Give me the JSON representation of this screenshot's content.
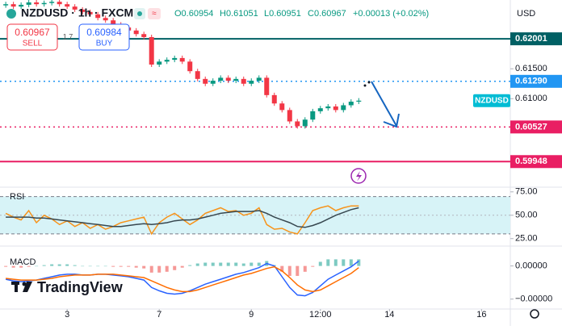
{
  "toolbar": {
    "symbol": "NZDUSD · 1h · FXCM",
    "open": "O0.60954",
    "high": "H0.61051",
    "low": "L0.60951",
    "close": "C0.60967",
    "change": "+0.00013 (+0.02%)",
    "sell_price": "0.60967",
    "sell": "SELL",
    "spread": "1.7",
    "buy_price": "0.60984",
    "buy": "BUY",
    "currency": "USD",
    "logo": "TradingView"
  },
  "chart_data": [
    {
      "type": "candlestick",
      "up_color": "#089981",
      "down_color": "#f23645",
      "x": [
        -32,
        -28,
        -24,
        -20,
        -16,
        -12,
        -8,
        -4,
        0,
        4,
        8,
        12,
        16,
        20,
        24,
        28,
        32,
        36,
        40,
        44,
        48,
        52,
        56,
        60,
        64,
        68,
        72,
        76,
        80,
        84,
        88,
        92,
        96,
        100,
        104,
        108,
        112,
        116,
        120,
        124,
        128,
        132,
        136,
        140,
        144,
        148,
        152
      ],
      "open": [
        0.6256,
        0.6258,
        0.6254,
        0.6257,
        0.6261,
        0.6258,
        0.626,
        0.6262,
        0.6258,
        0.6254,
        0.6249,
        0.6245,
        0.6241,
        0.6235,
        0.6231,
        0.6224,
        0.6219,
        0.6214,
        0.6208,
        0.6203,
        0.6157,
        0.6162,
        0.6165,
        0.6168,
        0.6162,
        0.6146,
        0.6133,
        0.6125,
        0.613,
        0.6135,
        0.613,
        0.6133,
        0.6125,
        0.613,
        0.6135,
        0.6106,
        0.6092,
        0.6081,
        0.6062,
        0.6054,
        0.6065,
        0.6079,
        0.6084,
        0.6087,
        0.6081,
        0.6089,
        0.6095
      ],
      "high": [
        0.6262,
        0.6262,
        0.6261,
        0.6265,
        0.6265,
        0.6264,
        0.6266,
        0.6266,
        0.6262,
        0.6258,
        0.6253,
        0.6249,
        0.6245,
        0.6239,
        0.6235,
        0.6228,
        0.6223,
        0.6218,
        0.6212,
        0.6207,
        0.6166,
        0.6169,
        0.6172,
        0.6172,
        0.6166,
        0.615,
        0.6137,
        0.6134,
        0.6139,
        0.6139,
        0.6137,
        0.6137,
        0.6134,
        0.6139,
        0.6139,
        0.611,
        0.6096,
        0.6085,
        0.6066,
        0.6069,
        0.6083,
        0.6088,
        0.6091,
        0.6091,
        0.6093,
        0.6099,
        0.6101
      ],
      "low": [
        0.6252,
        0.625,
        0.625,
        0.6253,
        0.6254,
        0.6254,
        0.6256,
        0.6254,
        0.625,
        0.6245,
        0.6241,
        0.6237,
        0.6231,
        0.6227,
        0.622,
        0.6215,
        0.621,
        0.6204,
        0.6199,
        0.6153,
        0.6153,
        0.6158,
        0.6161,
        0.6158,
        0.6142,
        0.6129,
        0.6121,
        0.6121,
        0.6126,
        0.6126,
        0.6126,
        0.6121,
        0.6121,
        0.6126,
        0.6102,
        0.6088,
        0.6077,
        0.6058,
        0.605,
        0.605,
        0.6061,
        0.6075,
        0.608,
        0.6077,
        0.6077,
        0.6085,
        0.6091
      ],
      "close": [
        0.6258,
        0.6254,
        0.6257,
        0.6261,
        0.6258,
        0.626,
        0.6262,
        0.6258,
        0.6254,
        0.6249,
        0.6245,
        0.6241,
        0.6235,
        0.6231,
        0.6224,
        0.6219,
        0.6214,
        0.6208,
        0.6203,
        0.6157,
        0.6162,
        0.6165,
        0.6168,
        0.6162,
        0.6146,
        0.6133,
        0.6125,
        0.613,
        0.6135,
        0.613,
        0.6133,
        0.6125,
        0.613,
        0.6135,
        0.6106,
        0.6092,
        0.6081,
        0.6062,
        0.6054,
        0.6065,
        0.6079,
        0.6084,
        0.6087,
        0.6081,
        0.6089,
        0.6095,
        0.60967
      ],
      "xlim": [
        -35,
        231
      ],
      "xticks": [
        {
          "value": 0,
          "label": "3"
        },
        {
          "value": 48,
          "label": "7"
        },
        {
          "value": 96,
          "label": "9"
        },
        {
          "value": 132,
          "label": "12:00"
        },
        {
          "value": 168,
          "label": "14"
        },
        {
          "value": 216,
          "label": "16"
        }
      ],
      "ylim": [
        0.5952,
        0.6265
      ],
      "yticks": [
        {
          "value": 0.615,
          "label": "0.61500"
        },
        {
          "value": 0.61,
          "label": "0.61000"
        }
      ],
      "grid": false,
      "levels": [
        {
          "value": 0.62001,
          "color": "#006064",
          "line": "solid"
        },
        {
          "value": 0.6129,
          "label": "0.61290",
          "color": "#2196f3",
          "line": "dotted"
        },
        {
          "value": 0.60527,
          "color": "#e91e63",
          "line": "dotted"
        },
        {
          "value": 0.59948,
          "color": "#e91e63",
          "line": "solid"
        }
      ],
      "last_label": "NZDUSD",
      "last_color": "#00bcd4"
    },
    {
      "type": "line",
      "series": [
        {
          "name": "RSI",
          "color": "#f7931a",
          "values": [
            52,
            48,
            45,
            55,
            42,
            50,
            46,
            40,
            44,
            38,
            42,
            36,
            40,
            35,
            38,
            42,
            44,
            46,
            48,
            30,
            42,
            48,
            52,
            46,
            40,
            45,
            52,
            55,
            58,
            54,
            55,
            50,
            52,
            58,
            40,
            35,
            36,
            32,
            30,
            42,
            55,
            58,
            60,
            55,
            58,
            60,
            60
          ]
        },
        {
          "color": "#37474f",
          "values": [
            48,
            48,
            48,
            48,
            47,
            47,
            46,
            45,
            44,
            43,
            42,
            41,
            40,
            39,
            38,
            38,
            39,
            40,
            41,
            40,
            41,
            42,
            44,
            45,
            45,
            46,
            48,
            50,
            52,
            53,
            54,
            54,
            54,
            55,
            52,
            48,
            45,
            42,
            38,
            37,
            39,
            42,
            46,
            50,
            53,
            56,
            58
          ]
        }
      ],
      "ylim": [
        17,
        80
      ],
      "yticks": [
        {
          "value": 75,
          "label": "75.00"
        },
        {
          "value": 50,
          "label": "50.00"
        },
        {
          "value": 25,
          "label": "25.00"
        }
      ],
      "band": [
        30,
        70
      ],
      "band_color": "#d7f3f7"
    },
    {
      "type": "line",
      "title": "MACD",
      "series": [
        {
          "kind": "bar",
          "up_color": "#26a69a",
          "down_color": "#ef5350",
          "values": [
            -1e-07,
            -2e-07,
            -2e-07,
            -1e-07,
            0,
            1e-07,
            2e-07,
            2e-07,
            2e-07,
            1e-07,
            0,
            0,
            0,
            0,
            -1e-07,
            -1e-07,
            -1e-07,
            -2e-07,
            -3e-07,
            -8e-07,
            -8e-07,
            -7e-07,
            -5e-07,
            -2e-07,
            1e-07,
            3e-07,
            4e-07,
            4e-07,
            4e-07,
            4e-07,
            4e-07,
            3e-07,
            4e-07,
            4e-07,
            6e-07,
            1e-07,
            -7e-07,
            -1.2e-06,
            -1.2e-06,
            -7e-07,
            -1e-07,
            5e-07,
            8e-07,
            8e-07,
            8e-07,
            8e-07,
            8e-07
          ]
        },
        {
          "color": "#2962ff",
          "values": [
            -1.6e-06,
            -1.8e-06,
            -1.9e-06,
            -1.8e-06,
            -1.7e-06,
            -1.5e-06,
            -1.3e-06,
            -1.1e-06,
            -1e-06,
            -1e-06,
            -1.1e-06,
            -1.1e-06,
            -1e-06,
            -1e-06,
            -1.1e-06,
            -1.2e-06,
            -1.3e-06,
            -1.5e-06,
            -1.7e-06,
            -2.6e-06,
            -3e-06,
            -3.3e-06,
            -3.4e-06,
            -3.3e-06,
            -3e-06,
            -2.6e-06,
            -2.2e-06,
            -1.9e-06,
            -1.6e-06,
            -1.3e-06,
            -1e-06,
            -8e-07,
            -5e-07,
            -2e-07,
            3e-07,
            0,
            -1.3e-06,
            -2.6e-06,
            -3.5e-06,
            -3.6e-06,
            -3.2e-06,
            -2.4e-06,
            -1.6e-06,
            -1.1e-06,
            -6e-07,
            -1e-07,
            6e-07
          ]
        },
        {
          "color": "#ff6d00",
          "values": [
            -1.5e-06,
            -1.6e-06,
            -1.7e-06,
            -1.7e-06,
            -1.7e-06,
            -1.6e-06,
            -1.5e-06,
            -1.3e-06,
            -1.2e-06,
            -1.1e-06,
            -1.1e-06,
            -1.1e-06,
            -1e-06,
            -1e-06,
            -1e-06,
            -1.1e-06,
            -1.2e-06,
            -1.3e-06,
            -1.4e-06,
            -1.8e-06,
            -2.2e-06,
            -2.6e-06,
            -2.9e-06,
            -3.1e-06,
            -3.1e-06,
            -2.9e-06,
            -2.6e-06,
            -2.3e-06,
            -2e-06,
            -1.7e-06,
            -1.4e-06,
            -1.1e-06,
            -9e-07,
            -6e-07,
            -3e-07,
            -1e-07,
            -6e-07,
            -1.4e-06,
            -2.3e-06,
            -2.9e-06,
            -3.1e-06,
            -2.9e-06,
            -2.4e-06,
            -1.9e-06,
            -1.4e-06,
            -9e-07,
            -2e-07
          ]
        }
      ],
      "ylim": [
        -5.2e-06,
        2.4e-06
      ],
      "yticks": [
        {
          "value": 0,
          "label": "0.00000"
        },
        {
          "value": -4e-06,
          "label": "−0.00000"
        }
      ]
    }
  ]
}
